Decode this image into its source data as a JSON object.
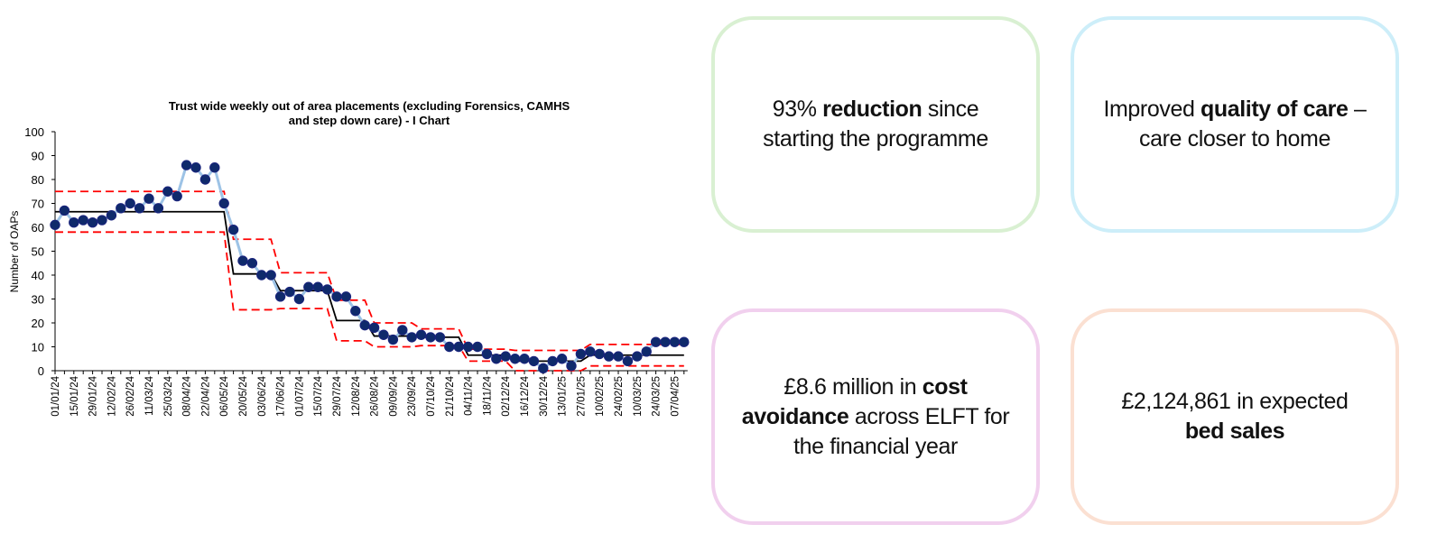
{
  "chart_data": {
    "type": "line",
    "title_lines": [
      "Trust wide weekly out of area placements (excluding Forensics, CAMHS",
      "and step down care) - I Chart"
    ],
    "xlabel": "",
    "ylabel": "Number of OAPs",
    "ylim": [
      0,
      100
    ],
    "yticks": [
      0,
      10,
      20,
      30,
      40,
      50,
      60,
      70,
      80,
      90,
      100
    ],
    "xtick_labels": [
      "01/01/24",
      "15/01/24",
      "29/01/24",
      "12/02/24",
      "26/02/24",
      "11/03/24",
      "25/03/24",
      "08/04/24",
      "22/04/24",
      "06/05/24",
      "20/05/24",
      "03/06/24",
      "17/06/24",
      "01/07/24",
      "15/07/24",
      "29/07/24",
      "12/08/24",
      "26/08/24",
      "09/09/24",
      "23/09/24",
      "07/10/24",
      "21/10/24",
      "04/11/24",
      "18/11/24",
      "02/12/24",
      "16/12/24",
      "30/12/24",
      "13/01/25",
      "27/01/25",
      "10/02/25",
      "24/02/25",
      "10/03/25",
      "24/03/25",
      "07/04/25"
    ],
    "xtick_every_weeks": 2,
    "series": [
      {
        "name": "Weekly OAPs",
        "color": "#9dc3e6",
        "marker_color": "#0f2a6b",
        "values": [
          61,
          67,
          62,
          63,
          62,
          63,
          65,
          68,
          70,
          68,
          72,
          68,
          75,
          73,
          86,
          85,
          80,
          85,
          70,
          59,
          46,
          45,
          40,
          40,
          31,
          33,
          30,
          35,
          35,
          34,
          31,
          31,
          25,
          19,
          18,
          15,
          13,
          17,
          14,
          15,
          14,
          14,
          10,
          10,
          10,
          10,
          7,
          5,
          6,
          5,
          5,
          4,
          1,
          4,
          5,
          2,
          7,
          8,
          7,
          6,
          6,
          4,
          6,
          8,
          12,
          12,
          12,
          12
        ]
      }
    ],
    "control_segments": [
      {
        "from": 0,
        "to": 18,
        "mean": 66.5,
        "ucl": 75,
        "lcl": 58
      },
      {
        "from": 19,
        "to": 23,
        "mean": 40.5,
        "ucl": 55,
        "lcl": 25.5
      },
      {
        "from": 24,
        "to": 29,
        "mean": 33.5,
        "ucl": 41,
        "lcl": 26
      },
      {
        "from": 30,
        "to": 33,
        "mean": 21,
        "ucl": 29.5,
        "lcl": 12.5
      },
      {
        "from": 34,
        "to": 38,
        "mean": 14.5,
        "ucl": 20,
        "lcl": 10
      },
      {
        "from": 39,
        "to": 43,
        "mean": 14,
        "ucl": 17.5,
        "lcl": 10.5
      },
      {
        "from": 44,
        "to": 48,
        "mean": 6.5,
        "ucl": 9,
        "lcl": 4
      },
      {
        "from": 49,
        "to": 56,
        "mean": 4,
        "ucl": 8.5,
        "lcl": 0
      },
      {
        "from": 57,
        "to": 67,
        "mean": 6.5,
        "ucl": 11,
        "lcl": 2
      }
    ],
    "mean_color": "#000000",
    "limit_color": "#ff0000",
    "grid": false
  },
  "cards": [
    {
      "border": "#d9f0d2",
      "parts": [
        {
          "text": "93% ",
          "bold": false
        },
        {
          "text": "reduction",
          "bold": true
        },
        {
          "text": " since starting the programme",
          "bold": false
        }
      ]
    },
    {
      "border": "#cdeef9",
      "parts": [
        {
          "text": "Improved ",
          "bold": false
        },
        {
          "text": "quality of care",
          "bold": true
        },
        {
          "text": " – care closer to home",
          "bold": false
        }
      ]
    },
    {
      "border": "#f1d0ee",
      "parts": [
        {
          "text": "£8.6 million in ",
          "bold": false
        },
        {
          "text": "cost avoidance",
          "bold": true
        },
        {
          "text": " across ELFT for the financial year",
          "bold": false
        }
      ]
    },
    {
      "border": "#fbe0d2",
      "parts": [
        {
          "text": "£2,124,861 in expected ",
          "bold": false
        },
        {
          "text": "bed sales",
          "bold": true
        }
      ]
    }
  ]
}
